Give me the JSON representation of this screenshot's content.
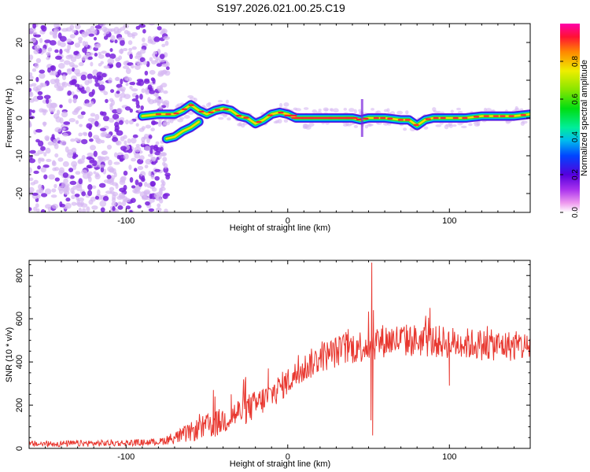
{
  "title": "S197.2026.021.00.25.C19",
  "colors": {
    "background": "#ffffff",
    "frame": "#000000",
    "snr_line": "#e8372f",
    "scatter_strong": "#7a22dd",
    "scatter_weak": "#d6b8f2"
  },
  "chart_data": [
    {
      "type": "heatmap",
      "name": "spectrogram",
      "xlabel": "Height of straight line (km)",
      "ylabel": "Frequency (Hz)",
      "xlim": [
        -160,
        150
      ],
      "ylim": [
        -25,
        25
      ],
      "xticks": [
        -100,
        0,
        100
      ],
      "xtick_labels": [
        "-100",
        "0",
        "100"
      ],
      "yticks": [
        -20,
        -10,
        0,
        10,
        20
      ],
      "ytick_labels": [
        "-20",
        "-10",
        "0",
        "10",
        "20"
      ],
      "noise_region_x": [
        -160,
        -78
      ],
      "ridge": {
        "upper_branch": [
          {
            "x": -90,
            "y": 0.5
          },
          {
            "x": -80,
            "y": 1
          },
          {
            "x": -70,
            "y": 1
          },
          {
            "x": -65,
            "y": 2
          },
          {
            "x": -60,
            "y": 3.5
          },
          {
            "x": -55,
            "y": 2
          },
          {
            "x": -50,
            "y": 1
          },
          {
            "x": -45,
            "y": 2
          },
          {
            "x": -40,
            "y": 2.5
          },
          {
            "x": -35,
            "y": 2
          },
          {
            "x": -30,
            "y": 0.5
          },
          {
            "x": -25,
            "y": 0
          },
          {
            "x": -20,
            "y": -1.5
          },
          {
            "x": -15,
            "y": -0.5
          },
          {
            "x": -10,
            "y": 1
          },
          {
            "x": -5,
            "y": 1.5
          },
          {
            "x": 0,
            "y": 1
          },
          {
            "x": 5,
            "y": 0
          },
          {
            "x": 20,
            "y": 0
          },
          {
            "x": 40,
            "y": 0
          },
          {
            "x": 45,
            "y": -0.5
          },
          {
            "x": 50,
            "y": 0
          },
          {
            "x": 60,
            "y": 0
          },
          {
            "x": 70,
            "y": -0.5
          },
          {
            "x": 75,
            "y": -0.5
          },
          {
            "x": 80,
            "y": -2
          },
          {
            "x": 85,
            "y": -0.5
          },
          {
            "x": 90,
            "y": 0
          },
          {
            "x": 100,
            "y": 0
          },
          {
            "x": 110,
            "y": 0
          },
          {
            "x": 120,
            "y": 0.5
          },
          {
            "x": 130,
            "y": 0.5
          },
          {
            "x": 140,
            "y": 0.5
          },
          {
            "x": 150,
            "y": 1
          }
        ],
        "lower_branch": [
          {
            "x": -75,
            "y": -5.5
          },
          {
            "x": -70,
            "y": -5
          },
          {
            "x": -65,
            "y": -3.5
          },
          {
            "x": -60,
            "y": -2.5
          },
          {
            "x": -55,
            "y": -1
          }
        ]
      },
      "colorbar": {
        "label": "Normalized spectral amplitude",
        "ticks": [
          0.0,
          0.2,
          0.4,
          0.6,
          0.8
        ],
        "tick_labels": [
          "0.0",
          "0.2",
          "0.4",
          "0.6",
          "0.8"
        ],
        "range": [
          0,
          1
        ]
      }
    },
    {
      "type": "line",
      "name": "snr",
      "xlabel": "Height of straight line (km)",
      "ylabel": "SNR (10 * v/v)",
      "xlim": [
        -160,
        150
      ],
      "ylim": [
        0,
        870
      ],
      "xticks": [
        -100,
        0,
        100
      ],
      "xtick_labels": [
        "-100",
        "0",
        "100"
      ],
      "yticks": [
        0,
        200,
        400,
        600,
        800
      ],
      "ytick_labels": [
        "0",
        "200",
        "400",
        "600",
        "800"
      ],
      "trend": [
        {
          "x": -160,
          "y": 20
        },
        {
          "x": -100,
          "y": 25
        },
        {
          "x": -80,
          "y": 30
        },
        {
          "x": -75,
          "y": 40
        },
        {
          "x": -65,
          "y": 60
        },
        {
          "x": -55,
          "y": 90
        },
        {
          "x": -45,
          "y": 110
        },
        {
          "x": -35,
          "y": 150
        },
        {
          "x": -20,
          "y": 200
        },
        {
          "x": -10,
          "y": 250
        },
        {
          "x": 0,
          "y": 310
        },
        {
          "x": 10,
          "y": 370
        },
        {
          "x": 20,
          "y": 420
        },
        {
          "x": 35,
          "y": 460
        },
        {
          "x": 50,
          "y": 480
        },
        {
          "x": 60,
          "y": 500
        },
        {
          "x": 80,
          "y": 500
        },
        {
          "x": 100,
          "y": 490
        },
        {
          "x": 120,
          "y": 480
        },
        {
          "x": 150,
          "y": 470
        }
      ],
      "noise_amplitude": [
        {
          "x": -160,
          "y": 15
        },
        {
          "x": -80,
          "y": 15
        },
        {
          "x": -70,
          "y": 30
        },
        {
          "x": -50,
          "y": 60
        },
        {
          "x": -30,
          "y": 70
        },
        {
          "x": 0,
          "y": 65
        },
        {
          "x": 50,
          "y": 80
        },
        {
          "x": 150,
          "y": 70
        }
      ],
      "peaks": [
        {
          "x": -46,
          "y": 270
        },
        {
          "x": -45,
          "y": 240
        },
        {
          "x": -35,
          "y": 250
        },
        {
          "x": -26,
          "y": 330
        },
        {
          "x": -12,
          "y": 370
        },
        {
          "x": 52,
          "y": 860
        },
        {
          "x": 53,
          "y": 640
        },
        {
          "x": 52.5,
          "y": 60
        },
        {
          "x": 51.5,
          "y": 130
        },
        {
          "x": 88,
          "y": 650
        },
        {
          "x": 100,
          "y": 290
        }
      ]
    }
  ]
}
